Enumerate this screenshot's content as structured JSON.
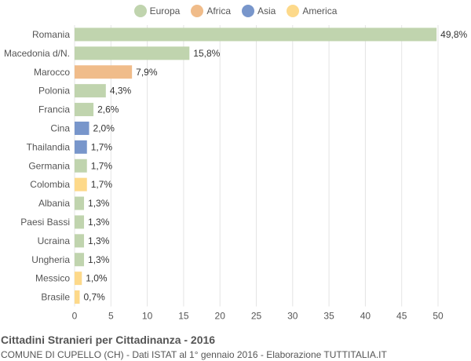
{
  "title": "Cittadini Stranieri per Cittadinanza - 2016",
  "subtitle": "COMUNE DI CUPELLO (CH) - Dati ISTAT al 1° gennaio 2016 - Elaborazione TUTTITALIA.IT",
  "legend": [
    {
      "name": "Europa",
      "color": "#c0d4ae"
    },
    {
      "name": "Africa",
      "color": "#f0bc8a"
    },
    {
      "name": "Asia",
      "color": "#7896cb"
    },
    {
      "name": "America",
      "color": "#fdd98a"
    }
  ],
  "chart_data": {
    "type": "bar",
    "orientation": "horizontal",
    "categories": [
      "Romania",
      "Macedonia d/N.",
      "Marocco",
      "Polonia",
      "Francia",
      "Cina",
      "Thailandia",
      "Germania",
      "Colombia",
      "Albania",
      "Paesi Bassi",
      "Ucraina",
      "Ungheria",
      "Messico",
      "Brasile"
    ],
    "values": [
      49.8,
      15.8,
      7.9,
      4.3,
      2.6,
      2.0,
      1.7,
      1.7,
      1.7,
      1.3,
      1.3,
      1.3,
      1.3,
      1.0,
      0.7
    ],
    "value_labels": [
      "49,8%",
      "15,8%",
      "7,9%",
      "4,3%",
      "2,6%",
      "2,0%",
      "1,7%",
      "1,7%",
      "1,7%",
      "1,3%",
      "1,3%",
      "1,3%",
      "1,3%",
      "1,0%",
      "0,7%"
    ],
    "groups": [
      "Europa",
      "Europa",
      "Africa",
      "Europa",
      "Europa",
      "Asia",
      "Asia",
      "Europa",
      "America",
      "Europa",
      "Europa",
      "Europa",
      "Europa",
      "America",
      "America"
    ],
    "xlim": [
      0,
      50
    ],
    "xticks": [
      0,
      5,
      10,
      15,
      20,
      25,
      30,
      35,
      40,
      45,
      50
    ],
    "grid": true,
    "legend_position": "top-center"
  }
}
